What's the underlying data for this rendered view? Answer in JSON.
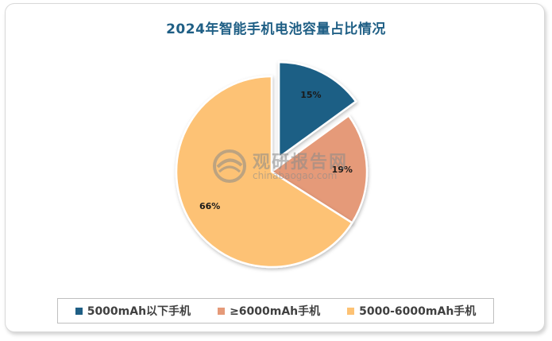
{
  "chart_data": {
    "type": "pie",
    "title": "2024年智能手机电池容量占比情况",
    "exploded_slice": "5000mAh以下手机",
    "slices": [
      {
        "label": "5000mAh以下手机",
        "value": 15,
        "display": "15%",
        "color": "#1f5f85"
      },
      {
        "label": "≥6000mAh手机",
        "value": 19,
        "display": "19%",
        "color": "#e59a79"
      },
      {
        "label": "5000-6000mAh手机",
        "value": 66,
        "display": "66%",
        "color": "#fdc274"
      }
    ],
    "legend_position": "bottom"
  },
  "watermark": {
    "name": "观研报告网",
    "domain": "chinabaogao.com",
    "icon": "swirl-logo-icon"
  }
}
